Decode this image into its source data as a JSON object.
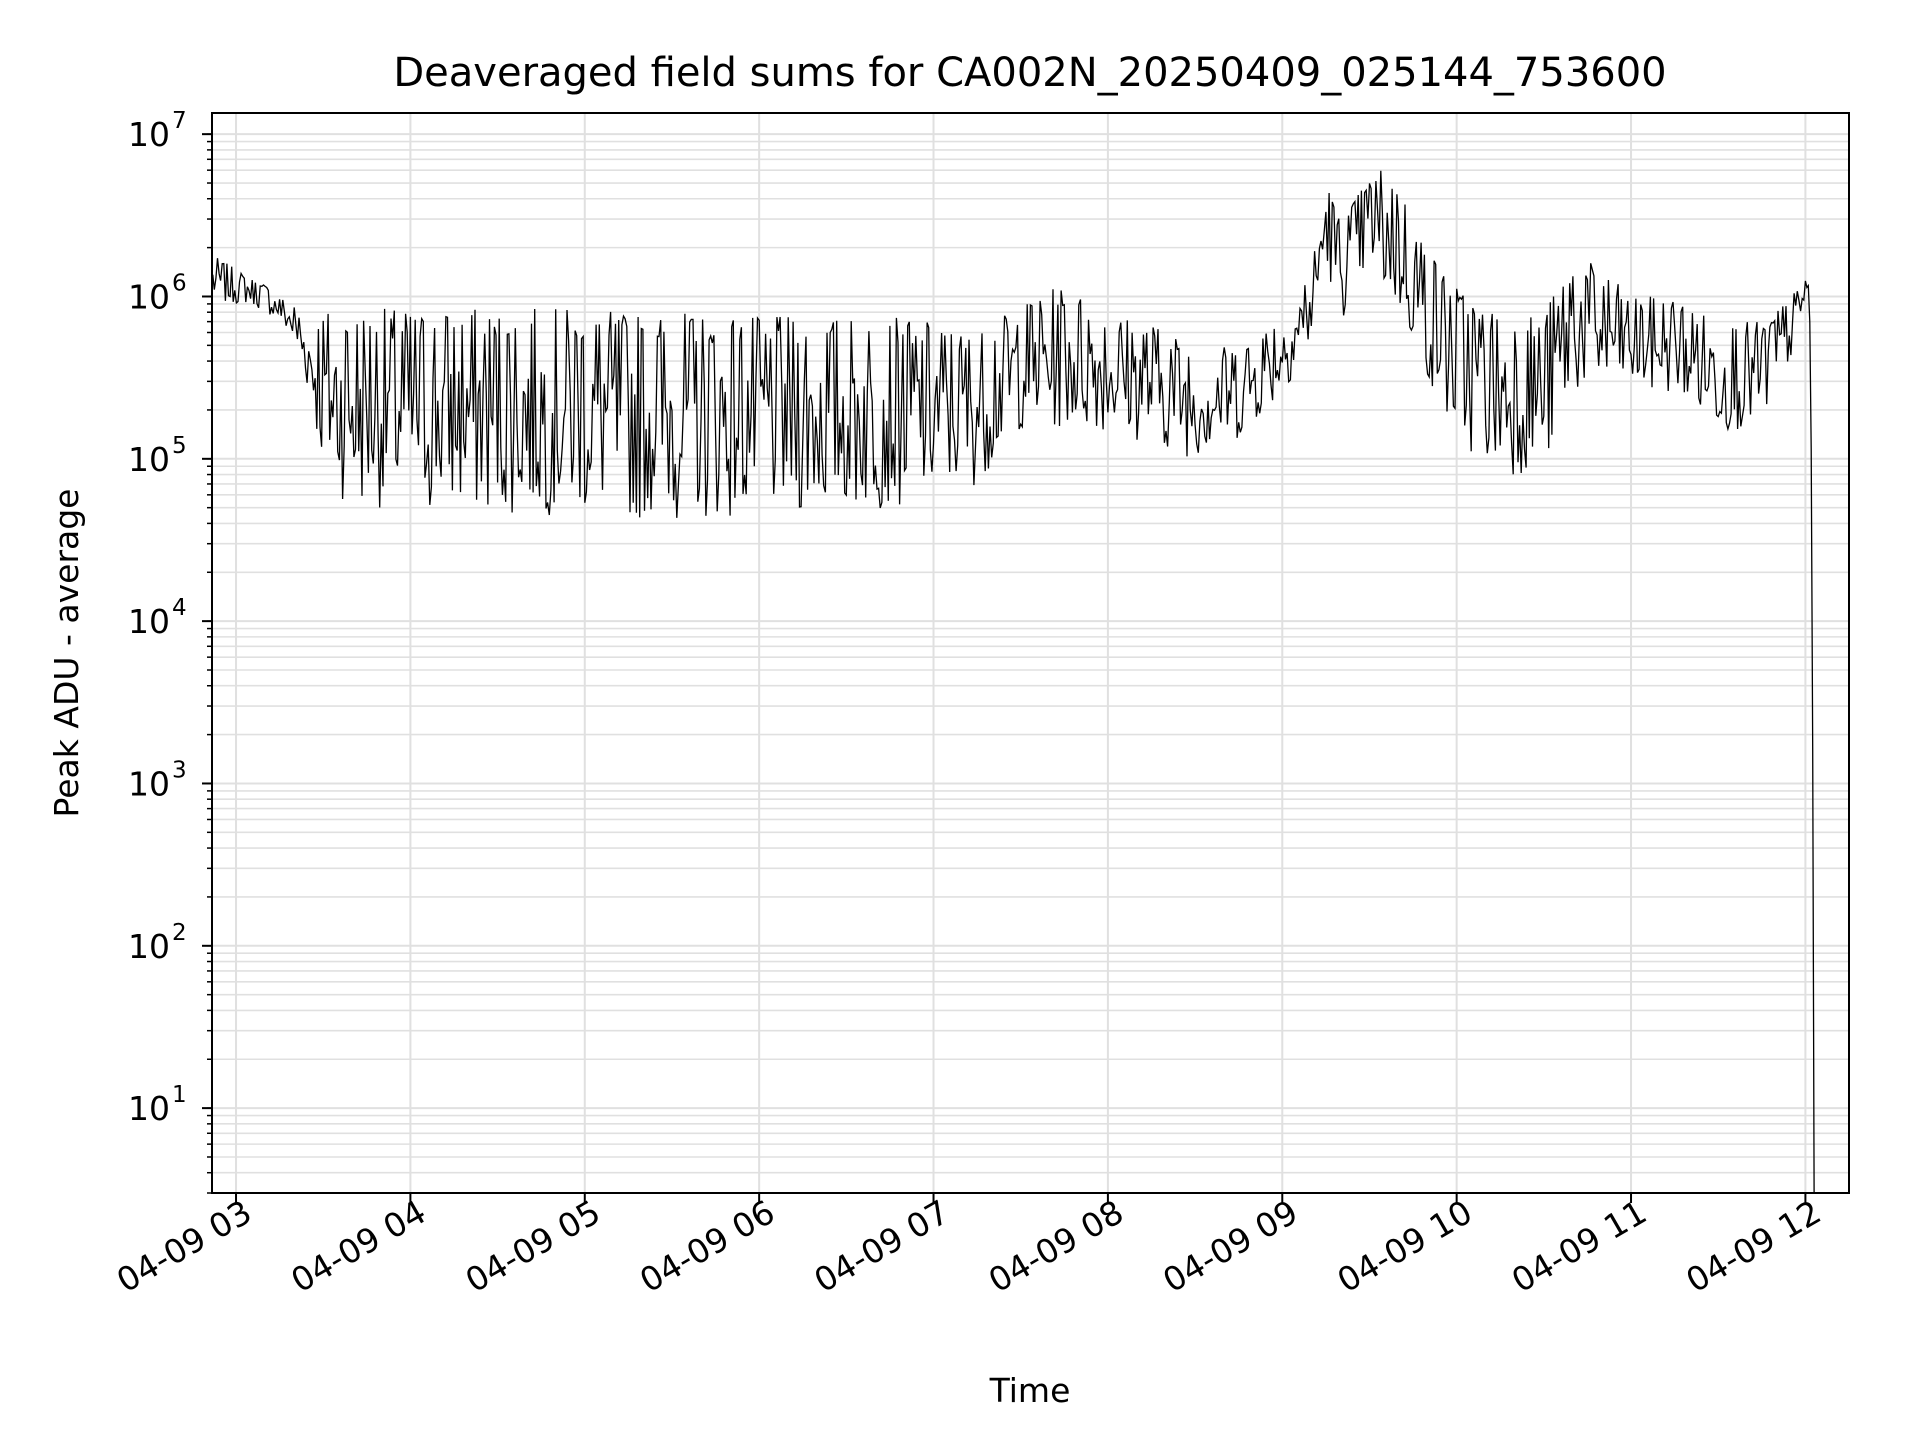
{
  "chart_data": {
    "type": "line",
    "title": "Deaveraged field sums for CA002N_20250409_025144_753600",
    "xlabel": "Time",
    "ylabel": "Peak ADU - average",
    "yscale": "log",
    "ylim": [
      3,
      13500000
    ],
    "xlim": [
      "2025-04-09 02:51:44",
      "2025-04-09 12:15:00"
    ],
    "grid": true,
    "x_ticks": [
      {
        "time": "2025-04-09 03:00",
        "label": "04-09 03"
      },
      {
        "time": "2025-04-09 04:00",
        "label": "04-09 04"
      },
      {
        "time": "2025-04-09 05:00",
        "label": "04-09 05"
      },
      {
        "time": "2025-04-09 06:00",
        "label": "04-09 06"
      },
      {
        "time": "2025-04-09 07:00",
        "label": "04-09 07"
      },
      {
        "time": "2025-04-09 08:00",
        "label": "04-09 08"
      },
      {
        "time": "2025-04-09 09:00",
        "label": "04-09 09"
      },
      {
        "time": "2025-04-09 10:00",
        "label": "04-09 10"
      },
      {
        "time": "2025-04-09 11:00",
        "label": "04-09 11"
      },
      {
        "time": "2025-04-09 12:00",
        "label": "04-09 12"
      }
    ],
    "y_ticks": [
      {
        "value": 10,
        "base": "10",
        "exp": "1"
      },
      {
        "value": 100,
        "base": "10",
        "exp": "2"
      },
      {
        "value": 1000,
        "base": "10",
        "exp": "3"
      },
      {
        "value": 10000,
        "base": "10",
        "exp": "4"
      },
      {
        "value": 100000,
        "base": "10",
        "exp": "5"
      },
      {
        "value": 1000000,
        "base": "10",
        "exp": "6"
      },
      {
        "value": 10000000,
        "base": "10",
        "exp": "7"
      }
    ],
    "line_color": "#000000",
    "grid_color": "#e0e0e0",
    "series": [
      {
        "x": [
          "2025-04-09 02:52",
          "2025-04-09 03:05",
          "2025-04-09 03:10",
          "2025-04-09 03:15",
          "2025-04-09 03:20",
          "2025-04-09 03:25",
          "2025-04-09 03:30",
          "2025-04-09 03:35",
          "2025-04-09 03:40",
          "2025-04-09 03:50",
          "2025-04-09 04:00",
          "2025-04-09 04:15",
          "2025-04-09 04:30",
          "2025-04-09 04:45",
          "2025-04-09 05:00",
          "2025-04-09 05:15",
          "2025-04-09 05:30",
          "2025-04-09 05:45",
          "2025-04-09 06:00",
          "2025-04-09 06:15",
          "2025-04-09 06:30",
          "2025-04-09 06:45",
          "2025-04-09 07:00",
          "2025-04-09 07:15",
          "2025-04-09 07:30",
          "2025-04-09 07:45",
          "2025-04-09 08:00",
          "2025-04-09 08:15",
          "2025-04-09 08:30",
          "2025-04-09 08:45",
          "2025-04-09 09:00",
          "2025-04-09 09:10",
          "2025-04-09 09:15",
          "2025-04-09 09:20",
          "2025-04-09 09:30",
          "2025-04-09 09:35",
          "2025-04-09 09:40",
          "2025-04-09 09:50",
          "2025-04-09 10:00",
          "2025-04-09 10:15",
          "2025-04-09 10:30",
          "2025-04-09 10:40",
          "2025-04-09 10:50",
          "2025-04-09 11:00",
          "2025-04-09 11:15",
          "2025-04-09 11:30",
          "2025-04-09 11:45",
          "2025-04-09 11:55",
          "2025-04-09 12:00",
          "2025-04-09 12:01",
          "2025-04-09 12:02",
          "2025-04-09 12:03"
        ],
        "lo": [
          900000,
          900000,
          800000,
          700000,
          500000,
          250000,
          80000,
          60000,
          50000,
          50000,
          45000,
          45000,
          45000,
          45000,
          45000,
          42000,
          42000,
          42000,
          45000,
          45000,
          47000,
          50000,
          55000,
          70000,
          150000,
          150000,
          150000,
          120000,
          100000,
          130000,
          250000,
          500000,
          1500000,
          700000,
          1500000,
          1000000,
          800000,
          300000,
          120000,
          80000,
          80000,
          250000,
          250000,
          250000,
          250000,
          150000,
          150000,
          400000,
          900000,
          1000000,
          50000,
          3
        ],
        "hi": [
          1800000,
          1300000,
          1200000,
          1000000,
          900000,
          700000,
          850000,
          850000,
          850000,
          850000,
          850000,
          850000,
          850000,
          850000,
          850000,
          800000,
          800000,
          800000,
          750000,
          750000,
          750000,
          750000,
          700000,
          600000,
          900000,
          1200000,
          800000,
          700000,
          500000,
          500000,
          800000,
          1500000,
          5500000,
          3000000,
          5500000,
          6500000,
          5000000,
          2000000,
          1200000,
          800000,
          800000,
          1800000,
          1500000,
          1000000,
          1000000,
          700000,
          700000,
          1000000,
          1300000,
          1300000,
          1200000,
          3
        ]
      }
    ]
  }
}
